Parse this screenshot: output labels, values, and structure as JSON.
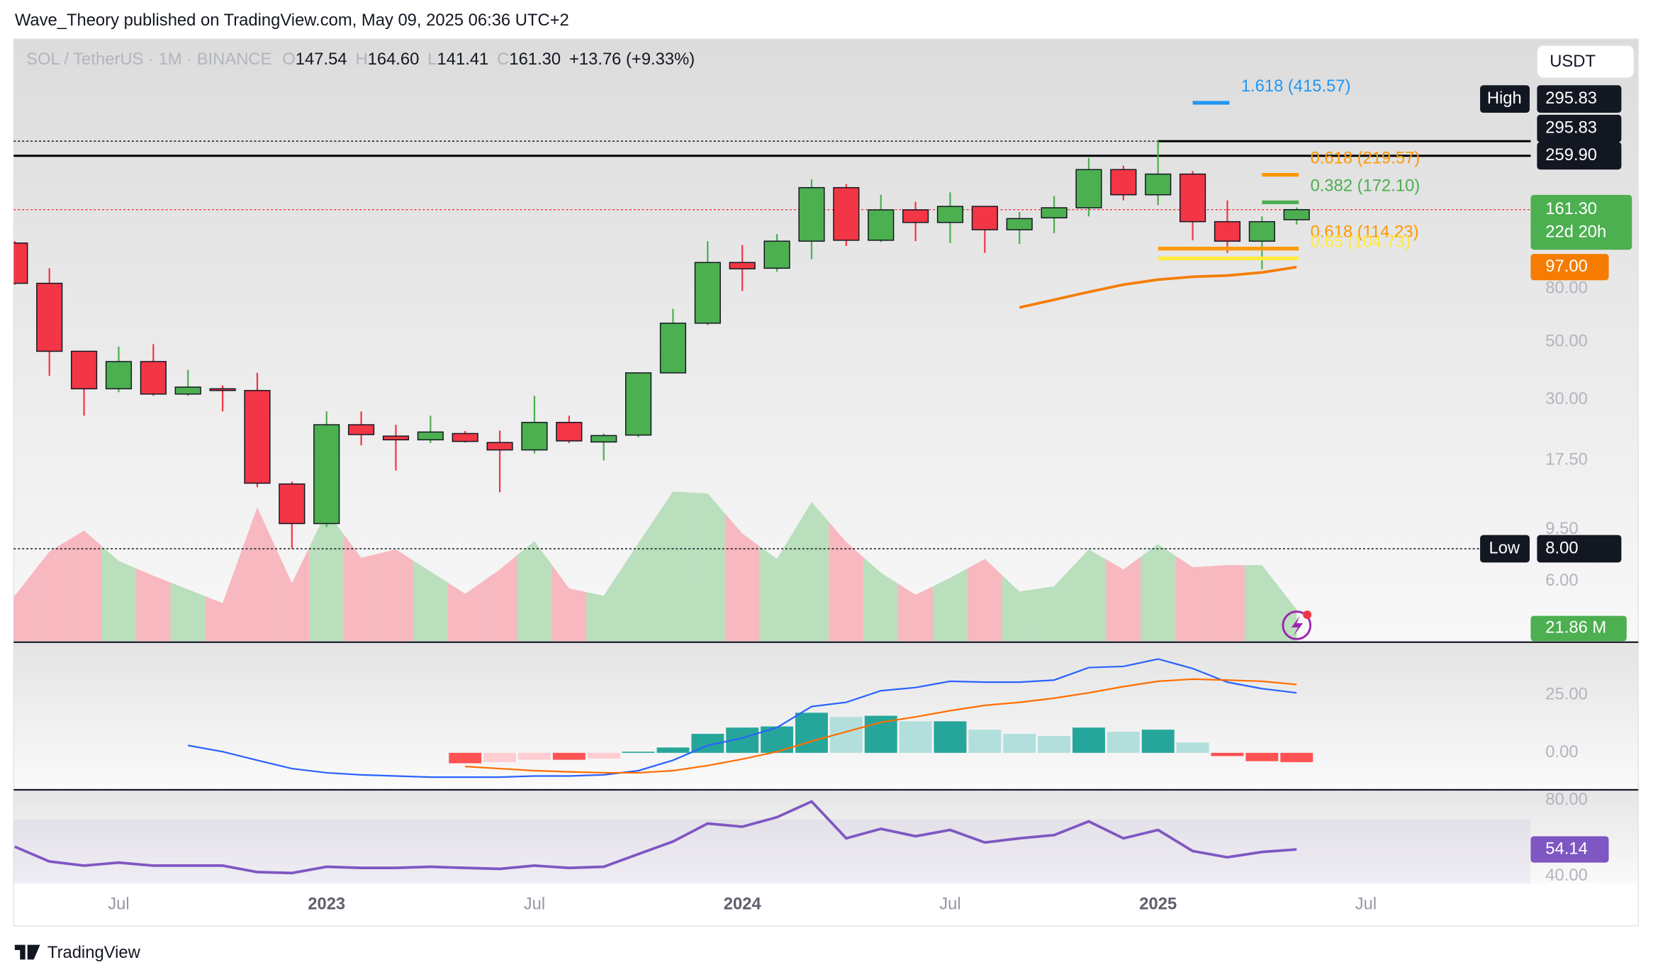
{
  "chart_data": {
    "type": "candlestick",
    "publisher": "Wave_Theory published on TradingView.com, May 09, 2025 06:36 UTC+2",
    "brand": "TradingView",
    "currency": "USDT",
    "title": "SOL / TetherUS · 1M · BINANCE",
    "legend": [
      {
        "key": "O",
        "value": "147.54"
      },
      {
        "key": "H",
        "value": "164.60"
      },
      {
        "key": "L",
        "value": "141.41"
      },
      {
        "key": "C",
        "value": "161.30"
      }
    ],
    "change": "+13.76 (+9.33%)",
    "x": [
      "2022-04",
      "2022-05",
      "2022-06",
      "2022-07",
      "2022-08",
      "2022-09",
      "2022-10",
      "2022-11",
      "2022-12",
      "2023-01",
      "2023-02",
      "2023-03",
      "2023-04",
      "2023-05",
      "2023-06",
      "2023-07",
      "2023-08",
      "2023-09",
      "2023-10",
      "2023-11",
      "2023-12",
      "2024-01",
      "2024-02",
      "2024-03",
      "2024-04",
      "2024-05",
      "2024-06",
      "2024-07",
      "2024-08",
      "2024-09",
      "2024-10",
      "2024-11",
      "2024-12",
      "2025-01",
      "2025-02",
      "2025-03",
      "2025-04",
      "2025-05"
    ],
    "xlim": [
      "2022-04",
      "2025-12"
    ],
    "xticks": [
      {
        "value": "2022-07",
        "label": "Jul"
      },
      {
        "value": "2023-01",
        "label": "2023"
      },
      {
        "value": "2023-07",
        "label": "Jul"
      },
      {
        "value": "2024-01",
        "label": "2024"
      },
      {
        "value": "2024-07",
        "label": "Jul"
      },
      {
        "value": "2025-01",
        "label": "2025"
      },
      {
        "value": "2025-07",
        "label": "Jul"
      }
    ],
    "open": [
      120,
      84,
      46,
      33,
      42,
      31.5,
      33,
      32.5,
      14.2,
      10,
      24,
      21.7,
      21,
      22.2,
      20.5,
      19.2,
      24.5,
      20.6,
      21.9,
      38,
      59,
      101,
      96,
      122,
      196,
      123,
      161,
      144,
      166,
      135,
      150,
      164,
      230,
      184,
      221,
      145,
      122,
      147.54
    ],
    "high": [
      122,
      96,
      46,
      48,
      49,
      39,
      34,
      38,
      14.5,
      27,
      27,
      24,
      26,
      22.7,
      22.8,
      31,
      26,
      22.2,
      38.2,
      67,
      122,
      118,
      130,
      211,
      202,
      184,
      173,
      188,
      166,
      158,
      182,
      255,
      238,
      295.83,
      227,
      175,
      152,
      164.6
    ],
    "low": [
      83,
      37,
      26,
      32,
      31,
      31,
      27,
      13.8,
      8,
      9.7,
      20,
      16,
      20.4,
      20.5,
      13.2,
      18.6,
      20.4,
      17.5,
      21.5,
      38,
      58,
      78.5,
      93,
      104,
      117,
      121,
      122,
      120,
      110,
      119,
      131,
      152,
      175,
      168,
      123,
      110,
      95,
      141.41
    ],
    "close": [
      84,
      46,
      33,
      42,
      31.5,
      33.5,
      32.5,
      14.3,
      10,
      24,
      22,
      21,
      22.5,
      20.7,
      19.2,
      24.5,
      20.8,
      21.8,
      38,
      59,
      101,
      95.5,
      122,
      196,
      123,
      161,
      144,
      166,
      135,
      149,
      164,
      230,
      184,
      221,
      145,
      122,
      145,
      161.3
    ],
    "colors": {
      "up": "#4caf50",
      "down": "#f23645"
    },
    "log_scale": true,
    "ylim": [
      3.53,
      731
    ],
    "yticks": [
      {
        "value": 80,
        "label": "80.00"
      },
      {
        "value": 50,
        "label": "50.00"
      },
      {
        "value": 30,
        "label": "30.00"
      },
      {
        "value": 17.5,
        "label": "17.50"
      },
      {
        "value": 9.5,
        "label": "9.50"
      },
      {
        "value": 6,
        "label": "6.00"
      }
    ],
    "extremes": [
      {
        "tag": "High",
        "label": "295.83",
        "value": 295.83
      },
      {
        "tag": "Low",
        "label": "8.00",
        "value": 8
      }
    ],
    "levels": [
      {
        "value": 295.83,
        "label": "295.83",
        "style": "solid",
        "from": "2025-01",
        "color": "#000000"
      },
      {
        "value": 259.9,
        "label": "259.90",
        "style": "solid",
        "color": "#000000"
      },
      {
        "value": 161.3,
        "label": "161.30",
        "countdown": "22d 20h",
        "style": "dotted",
        "color": "#f23645",
        "tag_color": "#4caf50"
      }
    ],
    "ema": {
      "start": 29,
      "values": [
        null,
        null,
        null,
        null,
        null,
        null,
        null,
        null,
        null,
        null,
        null,
        null,
        null,
        null,
        null,
        null,
        null,
        null,
        null,
        null,
        null,
        null,
        null,
        null,
        null,
        null,
        null,
        null,
        null,
        67.8,
        72.6,
        77.8,
        83,
        86.8,
        89,
        90,
        92.5,
        97
      ],
      "color": "#f57c00",
      "last_label": "97.00"
    },
    "fib": [
      {
        "label": "1.618 (415.57)",
        "value": 415.57,
        "color": "#2196f3",
        "from": "2025-02",
        "to": "2025-03"
      },
      {
        "label": "0.618 (219.57)",
        "value": 219.57,
        "color": "#ff9800",
        "from": "2025-04",
        "to": "2025-05"
      },
      {
        "label": "0.382 (172.10)",
        "value": 172.1,
        "color": "#4caf50",
        "from": "2025-04",
        "to": "2025-05"
      },
      {
        "label": "0.618 (114.23)",
        "value": 114.23,
        "color": "#ff9800",
        "from": "2025-01",
        "to": "2025-05"
      },
      {
        "label": "0.65 (104.73)",
        "value": 104.73,
        "color": "#ffeb3b",
        "from": "2025-01",
        "to": "2025-05"
      }
    ],
    "volume": {
      "values": [
        31.4,
        62,
        76.6,
        55.5,
        45.3,
        35.8,
        26.3,
        92.7,
        40.1,
        89.8,
        57.7,
        63.5,
        48.2,
        32.8,
        49.6,
        69.3,
        36.5,
        31.4,
        67.9,
        103.6,
        102.2,
        74.5,
        56.9,
        96.4,
        68.6,
        47.4,
        32.1,
        43.8,
        56.9,
        34.3,
        38,
        63.5,
        49.6,
        67.2,
        51.1,
        52.6,
        52.6,
        21.86
      ],
      "ylim": [
        0,
        416.8
      ],
      "last_label": "21.86 M",
      "colors": {
        "up": "#b9dfbc",
        "down": "#f7b8bf"
      },
      "tag_color": "#4caf50"
    },
    "macd": {
      "ylim": [
        -15.5,
        47.3
      ],
      "yticks": [
        {
          "value": 25,
          "label": "25.00"
        },
        {
          "value": 0,
          "label": "0.00"
        }
      ],
      "macd": {
        "color": "#2962ff",
        "values": [
          null,
          null,
          null,
          null,
          null,
          3.2,
          0.5,
          -3.2,
          -6.8,
          -8.6,
          -9.5,
          -10,
          -10.5,
          -10.5,
          -10.5,
          -10,
          -10,
          -9.5,
          -7.7,
          -3.2,
          3.2,
          6.4,
          10.9,
          20,
          21.8,
          26.8,
          28.2,
          30.9,
          30.5,
          30.5,
          31.4,
          36.8,
          37.3,
          40.5,
          36.4,
          30.5,
          27.7,
          25.9
        ]
      },
      "signal": {
        "color": "#ff6d00",
        "values": [
          null,
          null,
          null,
          null,
          null,
          null,
          null,
          null,
          null,
          null,
          null,
          null,
          null,
          -5.9,
          -6.8,
          -7.7,
          -8.2,
          -8.6,
          -8.6,
          -7.7,
          -5.5,
          -2.7,
          0.5,
          5,
          9.1,
          13.2,
          15.5,
          18.2,
          20.5,
          21.8,
          23.6,
          25.9,
          28.6,
          30.9,
          31.8,
          31.4,
          30.9,
          29.5
        ]
      },
      "histogram": {
        "colors": {
          "up_strong": "#26a69a",
          "up_weak": "#b2dfdb",
          "down_strong": "#ff5252",
          "down_weak": "#ffcdd2"
        },
        "values": [
          null,
          null,
          null,
          null,
          null,
          null,
          null,
          null,
          null,
          null,
          null,
          null,
          null,
          -4.5,
          -4,
          -3,
          -3,
          -2.5,
          0.5,
          2.3,
          8.2,
          10.9,
          11.4,
          17.3,
          15.5,
          16,
          13.6,
          13.6,
          10,
          8.2,
          7.3,
          10.9,
          9.1,
          10,
          4.5,
          -1.4,
          -3.6,
          -4
        ]
      }
    },
    "rsi": {
      "ylim": [
        36.1,
        85
      ],
      "yticks": [
        {
          "value": 80,
          "label": "80.00"
        },
        {
          "value": 40,
          "label": "40.00"
        }
      ],
      "band": [
        30,
        70
      ],
      "color": "#7e57c2",
      "values": [
        55.6,
        47.8,
        45.6,
        47.2,
        45.6,
        45.6,
        45.6,
        42.2,
        41.7,
        45,
        44.4,
        44.4,
        45,
        44.4,
        43.9,
        45.6,
        44.4,
        45,
        51.7,
        58.3,
        67.8,
        66.1,
        71.1,
        79.4,
        60,
        65,
        61.1,
        64.4,
        57.8,
        60,
        61.7,
        68.9,
        60,
        64.4,
        53.3,
        50,
        52.8,
        54.14
      ],
      "last_label": "54.14"
    }
  }
}
